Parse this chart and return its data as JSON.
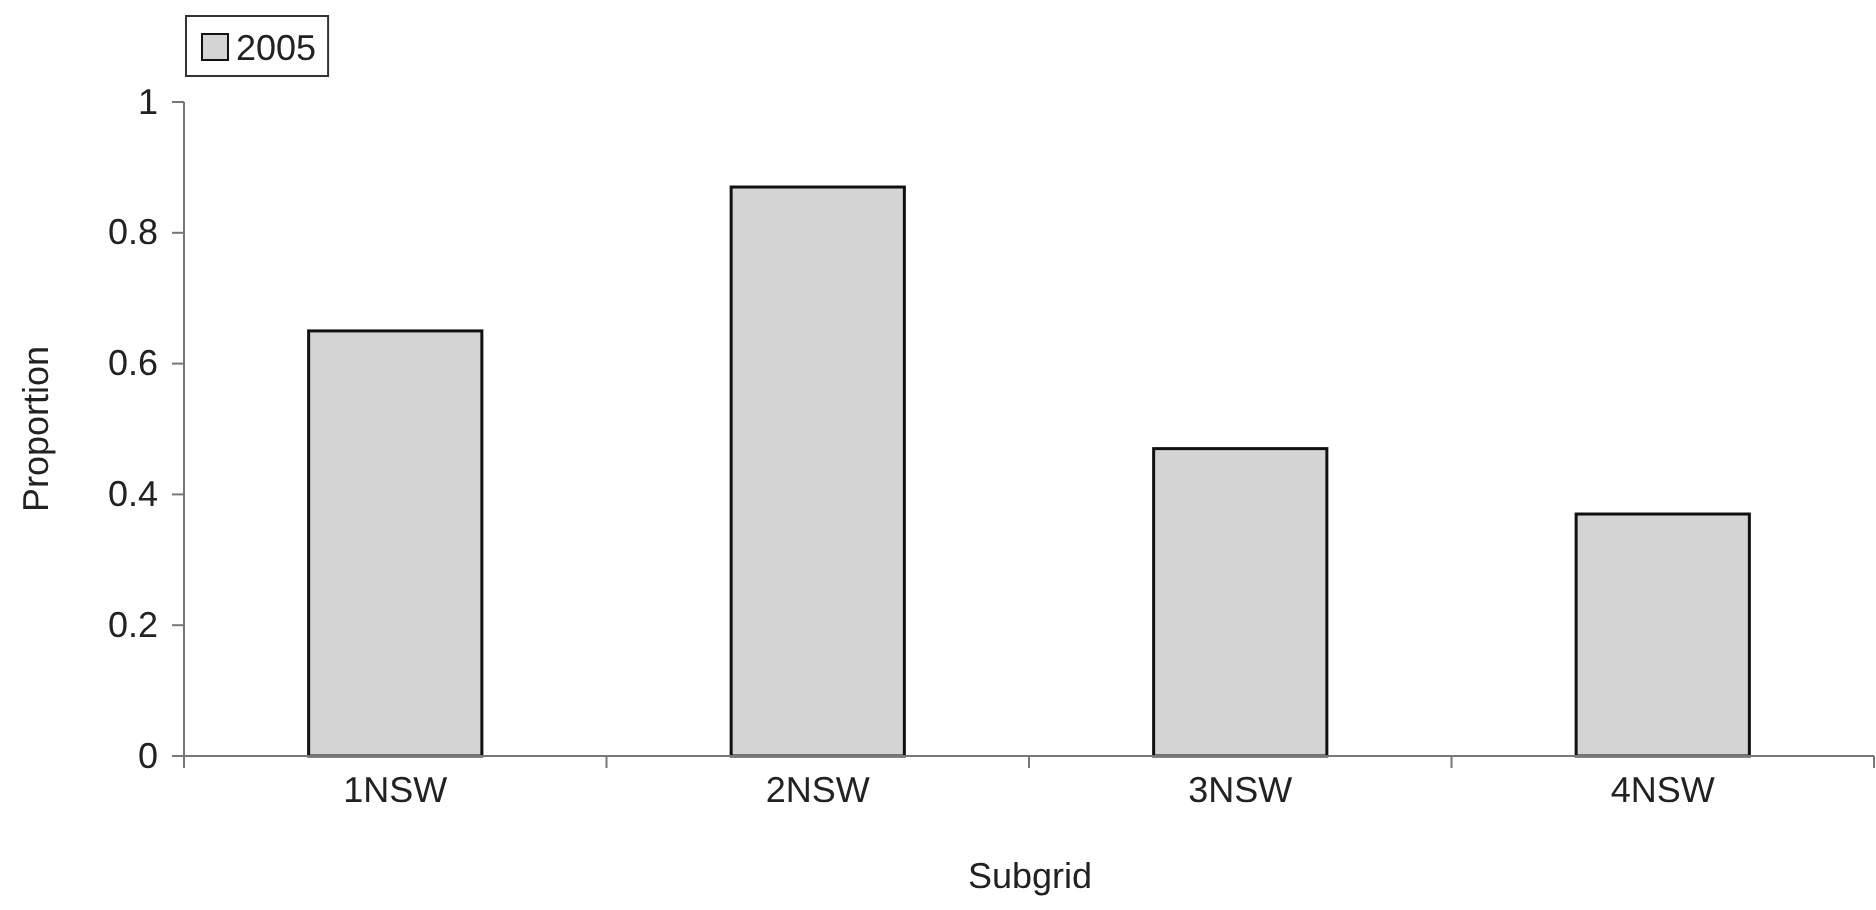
{
  "chart_data": {
    "type": "bar",
    "xlabel": "Subgrid",
    "ylabel": "Proportion",
    "categories": [
      "1NSW",
      "2NSW",
      "3NSW",
      "4NSW"
    ],
    "series": [
      {
        "name": "2005",
        "color": "#d4d4d4",
        "values": [
          0.65,
          0.87,
          0.47,
          0.37
        ]
      }
    ],
    "ylim": [
      0,
      1
    ],
    "yticks": [
      0,
      0.2,
      0.4,
      0.6,
      0.8,
      1
    ],
    "grid": false,
    "legend": "top left"
  }
}
